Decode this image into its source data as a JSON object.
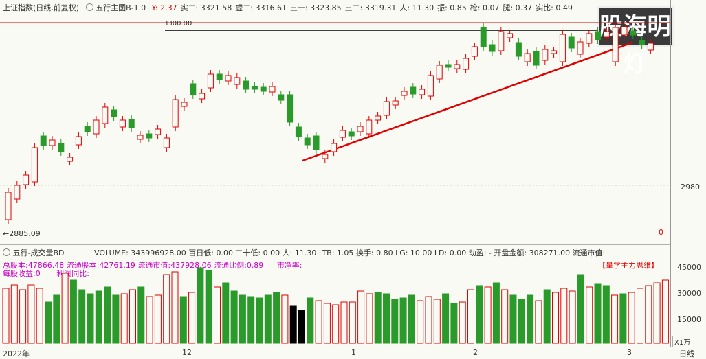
{
  "header": {
    "title": "上证指数(日线,前复权)",
    "indicator_name": "五行主图B-1.0",
    "stats": [
      {
        "label": "Y:",
        "value": "2.37"
      },
      {
        "label": "实二:",
        "value": "3321.58"
      },
      {
        "label": "虚二:",
        "value": "3316.61"
      },
      {
        "label": "三一:",
        "value": "3323.85"
      },
      {
        "label": "三二:",
        "value": "3319.31"
      },
      {
        "label": "人:",
        "value": "11.30"
      },
      {
        "label": "振:",
        "value": "0.85"
      },
      {
        "label": "枪:",
        "value": "0.07"
      },
      {
        "label": "腿:",
        "value": "0.37"
      },
      {
        "label": "实比:",
        "value": "0.49"
      }
    ]
  },
  "watermark": "股海明灯",
  "main_chart": {
    "level_label": "3300.00",
    "y_tick": "2980",
    "low_label": "2885.09",
    "zero_label": "0"
  },
  "volume_panel": {
    "title": "五行-成交量BD",
    "stats": "VOLUME: 343996928.00  百日低: 0.00  二十低: 0.00  人: 11.30  LTB: 1.05  换手: 0.80  LG: 10.00  LD: 0.00  动盈: -  开盘金额: 308271.00  流通市值:",
    "line2_left": "总股本:47866.48",
    "line2_mid": "流通股本:42761.19",
    "line2_cap": "流通市值:437928.06",
    "line2_ratio": "流通比例:0.89",
    "line2_pb": "市净率:",
    "line2_right": "【量学主力思维】",
    "line3_left": "每股收益:0",
    "line3_mid": "利润同比:",
    "y_ticks": [
      "45000",
      "30000",
      "15000"
    ],
    "unit": "X1万"
  },
  "x_axis": {
    "labels": [
      "2022年",
      "12",
      "1",
      "2",
      "3"
    ],
    "period": "日线"
  },
  "colors": {
    "up": "#e00000",
    "down": "#2a9a2a",
    "support": "#e00000",
    "resistance": "#000000"
  }
}
